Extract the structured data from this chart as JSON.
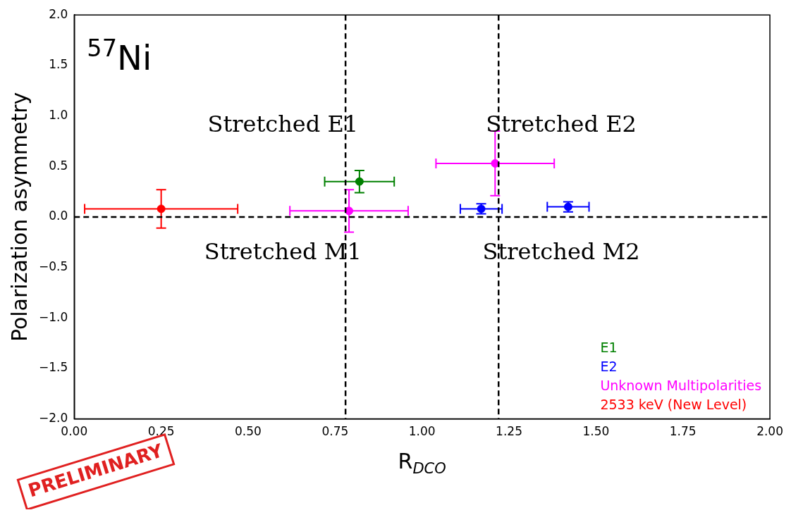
{
  "chart_data": {
    "type": "scatter",
    "title": "$^{57}$Ni",
    "xlabel": "R$_{DCO}$",
    "ylabel": "Polarization asymmetry",
    "xlim": [
      0,
      2
    ],
    "ylim": [
      -2,
      2
    ],
    "xticks": [
      {
        "value": 0,
        "label": "0.00"
      },
      {
        "value": 0.25,
        "label": "0.25"
      },
      {
        "value": 0.5,
        "label": "0.50"
      },
      {
        "value": 0.75,
        "label": "0.75"
      },
      {
        "value": 1,
        "label": "1.00"
      },
      {
        "value": 1.25,
        "label": "1.25"
      },
      {
        "value": 1.5,
        "label": "1.50"
      },
      {
        "value": 1.75,
        "label": "1.75"
      },
      {
        "value": 2,
        "label": "2.00"
      }
    ],
    "yticks": [
      {
        "value": -2,
        "label": "−2.0"
      },
      {
        "value": -1.5,
        "label": "−1.5"
      },
      {
        "value": -1,
        "label": "−1.0"
      },
      {
        "value": -0.5,
        "label": "−0.5"
      },
      {
        "value": 0,
        "label": "0.0"
      },
      {
        "value": 0.5,
        "label": "0.5"
      },
      {
        "value": 1,
        "label": "1.0"
      },
      {
        "value": 1.5,
        "label": "1.5"
      },
      {
        "value": 2,
        "label": "2.0"
      }
    ],
    "series": [
      {
        "name": "E1",
        "color": "#008000",
        "x": [
          0.82
        ],
        "values": [
          0.35
        ],
        "errors": [
          0.11
        ],
        "xerrors": [
          0.1
        ]
      },
      {
        "name": "E2",
        "color": "#0000ff",
        "x": [
          1.17,
          1.42
        ],
        "values": [
          0.08,
          0.1
        ],
        "errors": [
          0.05,
          0.05
        ],
        "xerrors": [
          0.06,
          0.06
        ]
      },
      {
        "name": "Unknown Multipolarities",
        "color": "#ff00ff",
        "x": [
          0.79,
          1.21
        ],
        "values": [
          0.06,
          0.53
        ],
        "errors": [
          0.21,
          0.32
        ],
        "xerrors": [
          0.17,
          0.17
        ]
      },
      {
        "name": "2533 keV (New Level)",
        "color": "#ff0000",
        "x": [
          0.25
        ],
        "values": [
          0.08
        ],
        "errors": [
          0.19
        ],
        "xerrors": [
          0.22
        ]
      }
    ],
    "ref_lines": [
      {
        "axis": "x",
        "value": 0.78,
        "color": "#000000",
        "line_style": "dashed"
      },
      {
        "axis": "x",
        "value": 1.22,
        "color": "#000000",
        "line_style": "dashed"
      },
      {
        "axis": "y",
        "value": 0,
        "color": "#000000",
        "line_style": "dashed"
      }
    ],
    "annotations": [
      "Stretched E1",
      "Stretched E2",
      "Stretched M1",
      "Stretched M2",
      "PRELIMINARY"
    ],
    "legend": "bottom right",
    "marker": "circle",
    "grid": false
  }
}
